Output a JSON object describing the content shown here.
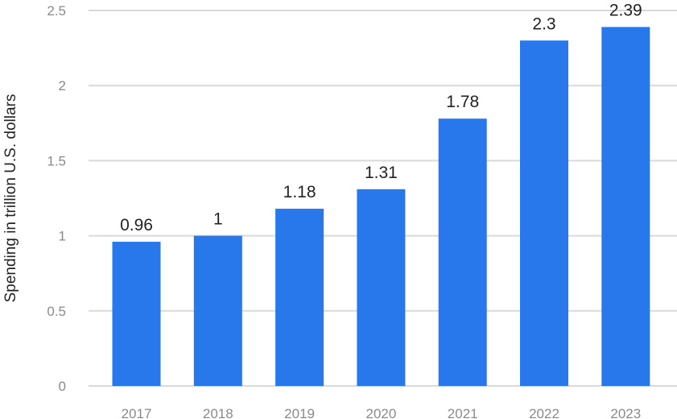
{
  "chart_data": {
    "type": "bar",
    "categories": [
      "2017",
      "2018",
      "2019",
      "2020",
      "2021",
      "2022",
      "2023"
    ],
    "values": [
      0.96,
      1,
      1.18,
      1.31,
      1.78,
      2.3,
      2.39
    ],
    "value_labels": [
      "0.96",
      "1",
      "1.18",
      "1.31",
      "1.78",
      "2.3",
      "2.39"
    ],
    "xlabel": "",
    "ylabel": "Spending in trillion U.S. dollars",
    "ylim": [
      0,
      2.5
    ],
    "yticks": [
      0,
      0.5,
      1,
      1.5,
      2,
      2.5
    ],
    "ytick_labels": [
      "0",
      "0.5",
      "1",
      "1.5",
      "2",
      "2.5"
    ],
    "grid": true,
    "legend": "none",
    "colors": {
      "bar": "#2878eb",
      "grid": "#d9d9d9",
      "tick_text": "#8a8a8a",
      "label_text": "#222222"
    }
  }
}
